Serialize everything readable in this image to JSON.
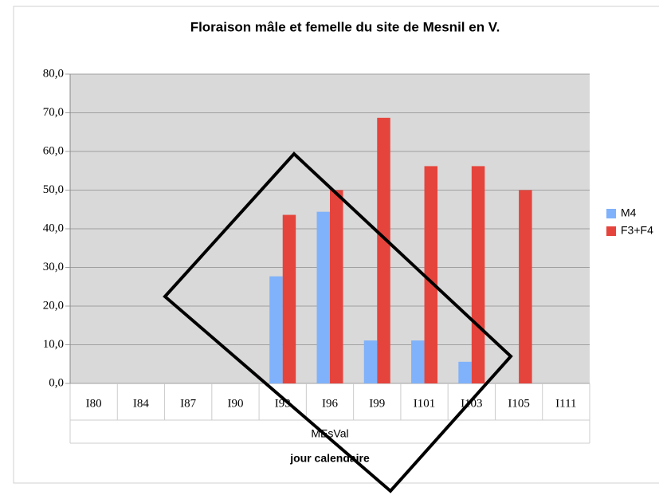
{
  "chart_data": {
    "type": "bar",
    "title": "Floraison mâle et femelle du site de Mesnil en V.",
    "categories": [
      "I80",
      "I84",
      "I87",
      "I90",
      "I93",
      "I96",
      "I99",
      "I101",
      "I103",
      "I105",
      "I111"
    ],
    "group_label": "MEsVal",
    "x_label": "jour calendaire",
    "series": [
      {
        "name": "M4",
        "color": "#7fb2fa",
        "values": [
          0,
          0,
          0,
          0,
          27.7,
          44.4,
          11.1,
          11.1,
          5.6,
          0,
          0
        ]
      },
      {
        "name": "F3+F4",
        "color": "#e5443c",
        "values": [
          0,
          0,
          0,
          0,
          43.6,
          50.0,
          68.7,
          56.2,
          56.2,
          50.0,
          0
        ]
      }
    ],
    "ylim": [
      0,
      80
    ],
    "yticks": [
      {
        "value": 0,
        "label": "0,0"
      },
      {
        "value": 10,
        "label": "10,0"
      },
      {
        "value": 20,
        "label": "20,0"
      },
      {
        "value": 30,
        "label": "30,0"
      },
      {
        "value": 40,
        "label": "40,0"
      },
      {
        "value": 50,
        "label": "50,0"
      },
      {
        "value": 60,
        "label": "60,0"
      },
      {
        "value": 70,
        "label": "70,0"
      },
      {
        "value": 80,
        "label": "80,0"
      }
    ],
    "grid": true,
    "legend": "right"
  }
}
